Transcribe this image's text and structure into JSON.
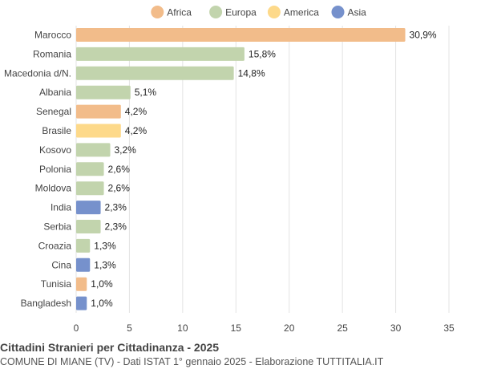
{
  "chart_data": {
    "type": "bar",
    "orientation": "horizontal",
    "title": "Cittadini Stranieri per Cittadinanza - 2025",
    "subtitle": "COMUNE DI MIANE (TV) - Dati ISTAT 1° gennaio 2025 - Elaborazione TUTTITALIA.IT",
    "xlim": [
      0,
      35
    ],
    "xticks": [
      0,
      5,
      10,
      15,
      20,
      25,
      30,
      35
    ],
    "grid": true,
    "legend_position": "top",
    "legend": [
      {
        "name": "Africa",
        "color": "#f2bc8a"
      },
      {
        "name": "Europa",
        "color": "#c2d4ad"
      },
      {
        "name": "America",
        "color": "#fdd98a"
      },
      {
        "name": "Asia",
        "color": "#7691cc"
      }
    ],
    "bars": [
      {
        "category": "Marocco",
        "value": 30.9,
        "label": "30,9%",
        "group": "Africa"
      },
      {
        "category": "Romania",
        "value": 15.8,
        "label": "15,8%",
        "group": "Europa"
      },
      {
        "category": "Macedonia d/N.",
        "value": 14.8,
        "label": "14,8%",
        "group": "Europa"
      },
      {
        "category": "Albania",
        "value": 5.1,
        "label": "5,1%",
        "group": "Europa"
      },
      {
        "category": "Senegal",
        "value": 4.2,
        "label": "4,2%",
        "group": "Africa"
      },
      {
        "category": "Brasile",
        "value": 4.2,
        "label": "4,2%",
        "group": "America"
      },
      {
        "category": "Kosovo",
        "value": 3.2,
        "label": "3,2%",
        "group": "Europa"
      },
      {
        "category": "Polonia",
        "value": 2.6,
        "label": "2,6%",
        "group": "Europa"
      },
      {
        "category": "Moldova",
        "value": 2.6,
        "label": "2,6%",
        "group": "Europa"
      },
      {
        "category": "India",
        "value": 2.3,
        "label": "2,3%",
        "group": "Asia"
      },
      {
        "category": "Serbia",
        "value": 2.3,
        "label": "2,3%",
        "group": "Europa"
      },
      {
        "category": "Croazia",
        "value": 1.3,
        "label": "1,3%",
        "group": "Europa"
      },
      {
        "category": "Cina",
        "value": 1.3,
        "label": "1,3%",
        "group": "Asia"
      },
      {
        "category": "Tunisia",
        "value": 1.0,
        "label": "1,0%",
        "group": "Africa"
      },
      {
        "category": "Bangladesh",
        "value": 1.0,
        "label": "1,0%",
        "group": "Asia"
      }
    ]
  }
}
